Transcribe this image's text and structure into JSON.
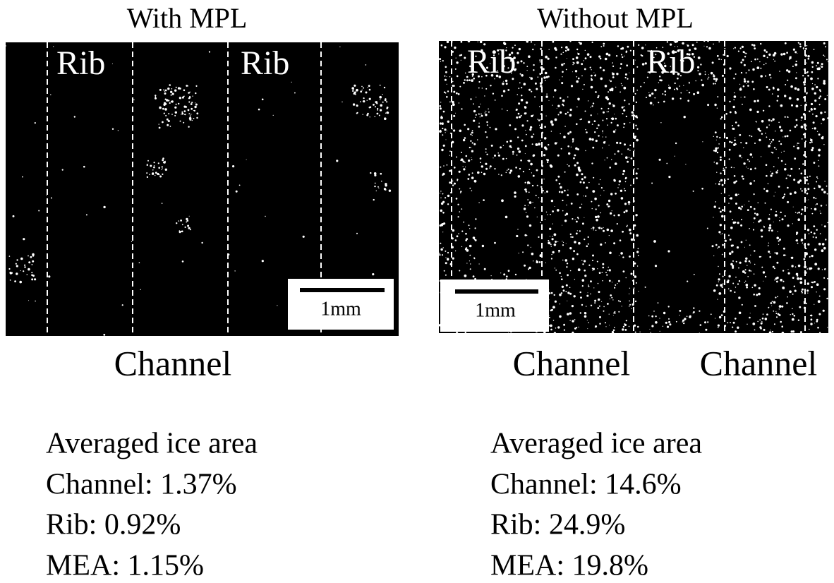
{
  "panels": [
    {
      "title": "With MPL",
      "image": {
        "rib_labels": [
          "Rib",
          "Rib"
        ],
        "scale_bar": "1mm"
      },
      "channel_labels": [
        "Channel"
      ],
      "stats": [
        "Averaged ice area",
        "Channel: 1.37%",
        "Rib: 0.92%",
        "MEA: 1.15%"
      ]
    },
    {
      "title": "Without MPL",
      "image": {
        "rib_labels": [
          "Rib",
          "Rib"
        ],
        "scale_bar": "1mm"
      },
      "channel_labels": [
        "Channel",
        "Channel"
      ],
      "stats": [
        "Averaged ice area",
        "Channel: 14.6%",
        "Rib: 24.9%",
        "MEA: 19.8%"
      ]
    }
  ]
}
